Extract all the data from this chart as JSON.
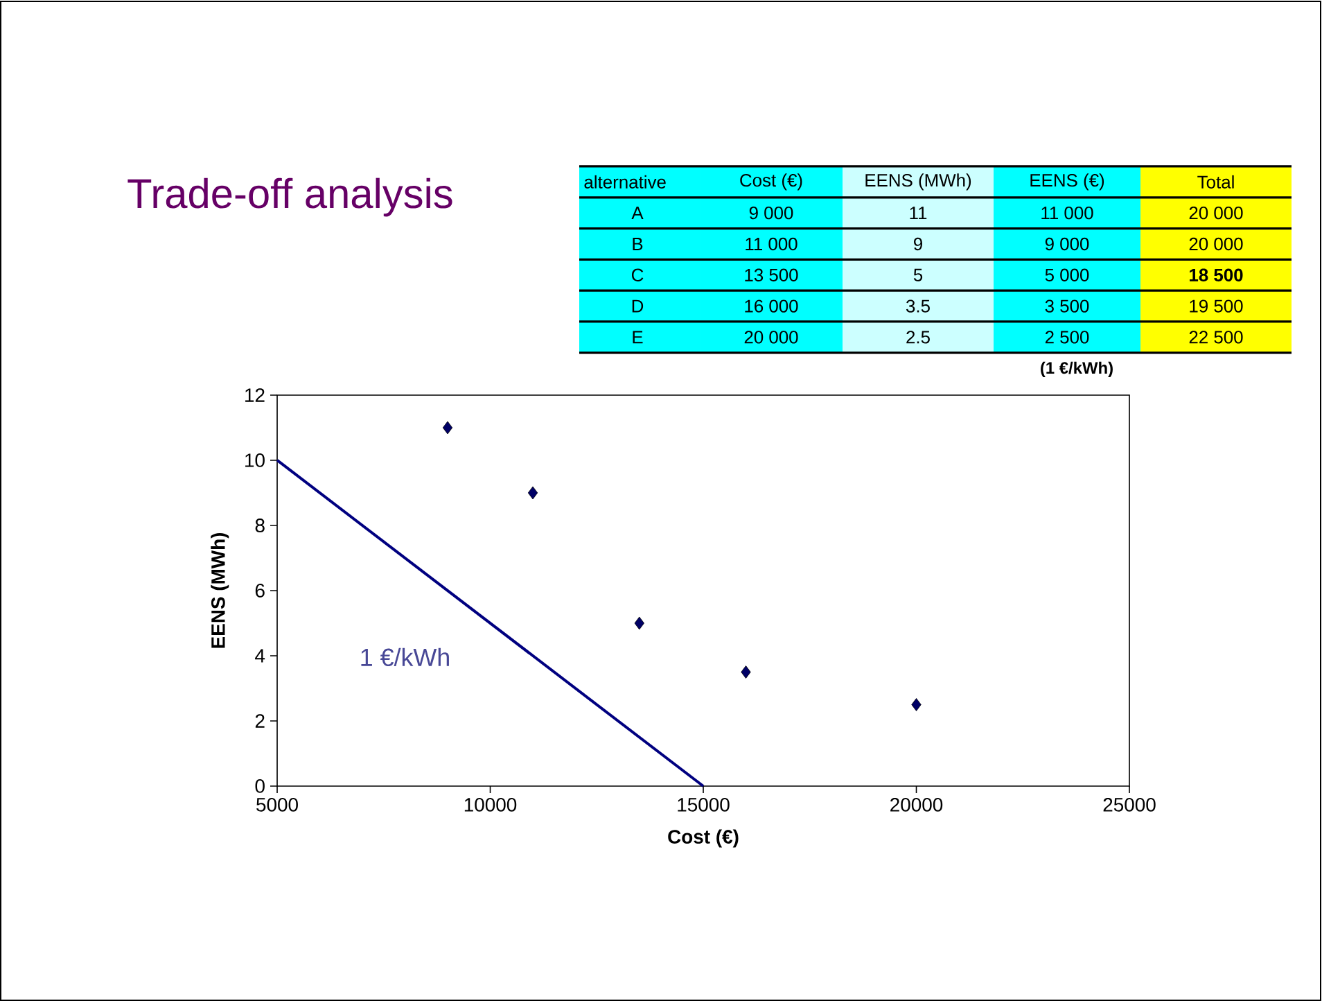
{
  "chart_data": {
    "type": "scatter",
    "title": "Trade-off analysis",
    "xlabel": "Cost (€)",
    "ylabel": "EENS (MWh)",
    "xlim": [
      5000,
      25000
    ],
    "xticks": [
      5000,
      10000,
      15000,
      20000,
      25000
    ],
    "ylim": [
      0,
      12
    ],
    "yticks": [
      0,
      2,
      4,
      6,
      8,
      10,
      12
    ],
    "series": [
      {
        "type": "scatter",
        "color": "#000066",
        "marker": "diamond",
        "x": [
          9000,
          11000,
          13500,
          16000,
          20000
        ],
        "values": [
          11,
          9,
          5,
          3.5,
          2.5
        ]
      },
      {
        "type": "line",
        "color": "#000080",
        "marker": "none",
        "line_style": "solid",
        "x": [
          5000,
          15000
        ],
        "values": [
          10,
          0
        ]
      }
    ],
    "annotations": [
      "alternative",
      "Cost (€)",
      "EENS (MWh)",
      "EENS (€)",
      "Total",
      "A",
      "9 000",
      "11",
      "11 000",
      "20 000",
      "B",
      "11 000",
      "9",
      "9 000",
      "20 000",
      "C",
      "13 500",
      "5",
      "5 000",
      "**18 500**",
      "D",
      "16 000",
      "3.5",
      "3 500",
      "19 500",
      "E",
      "20 000",
      "2.5",
      "2 500",
      "22 500",
      "(1 €/kWh)",
      "1 €/kWh"
    ]
  }
}
